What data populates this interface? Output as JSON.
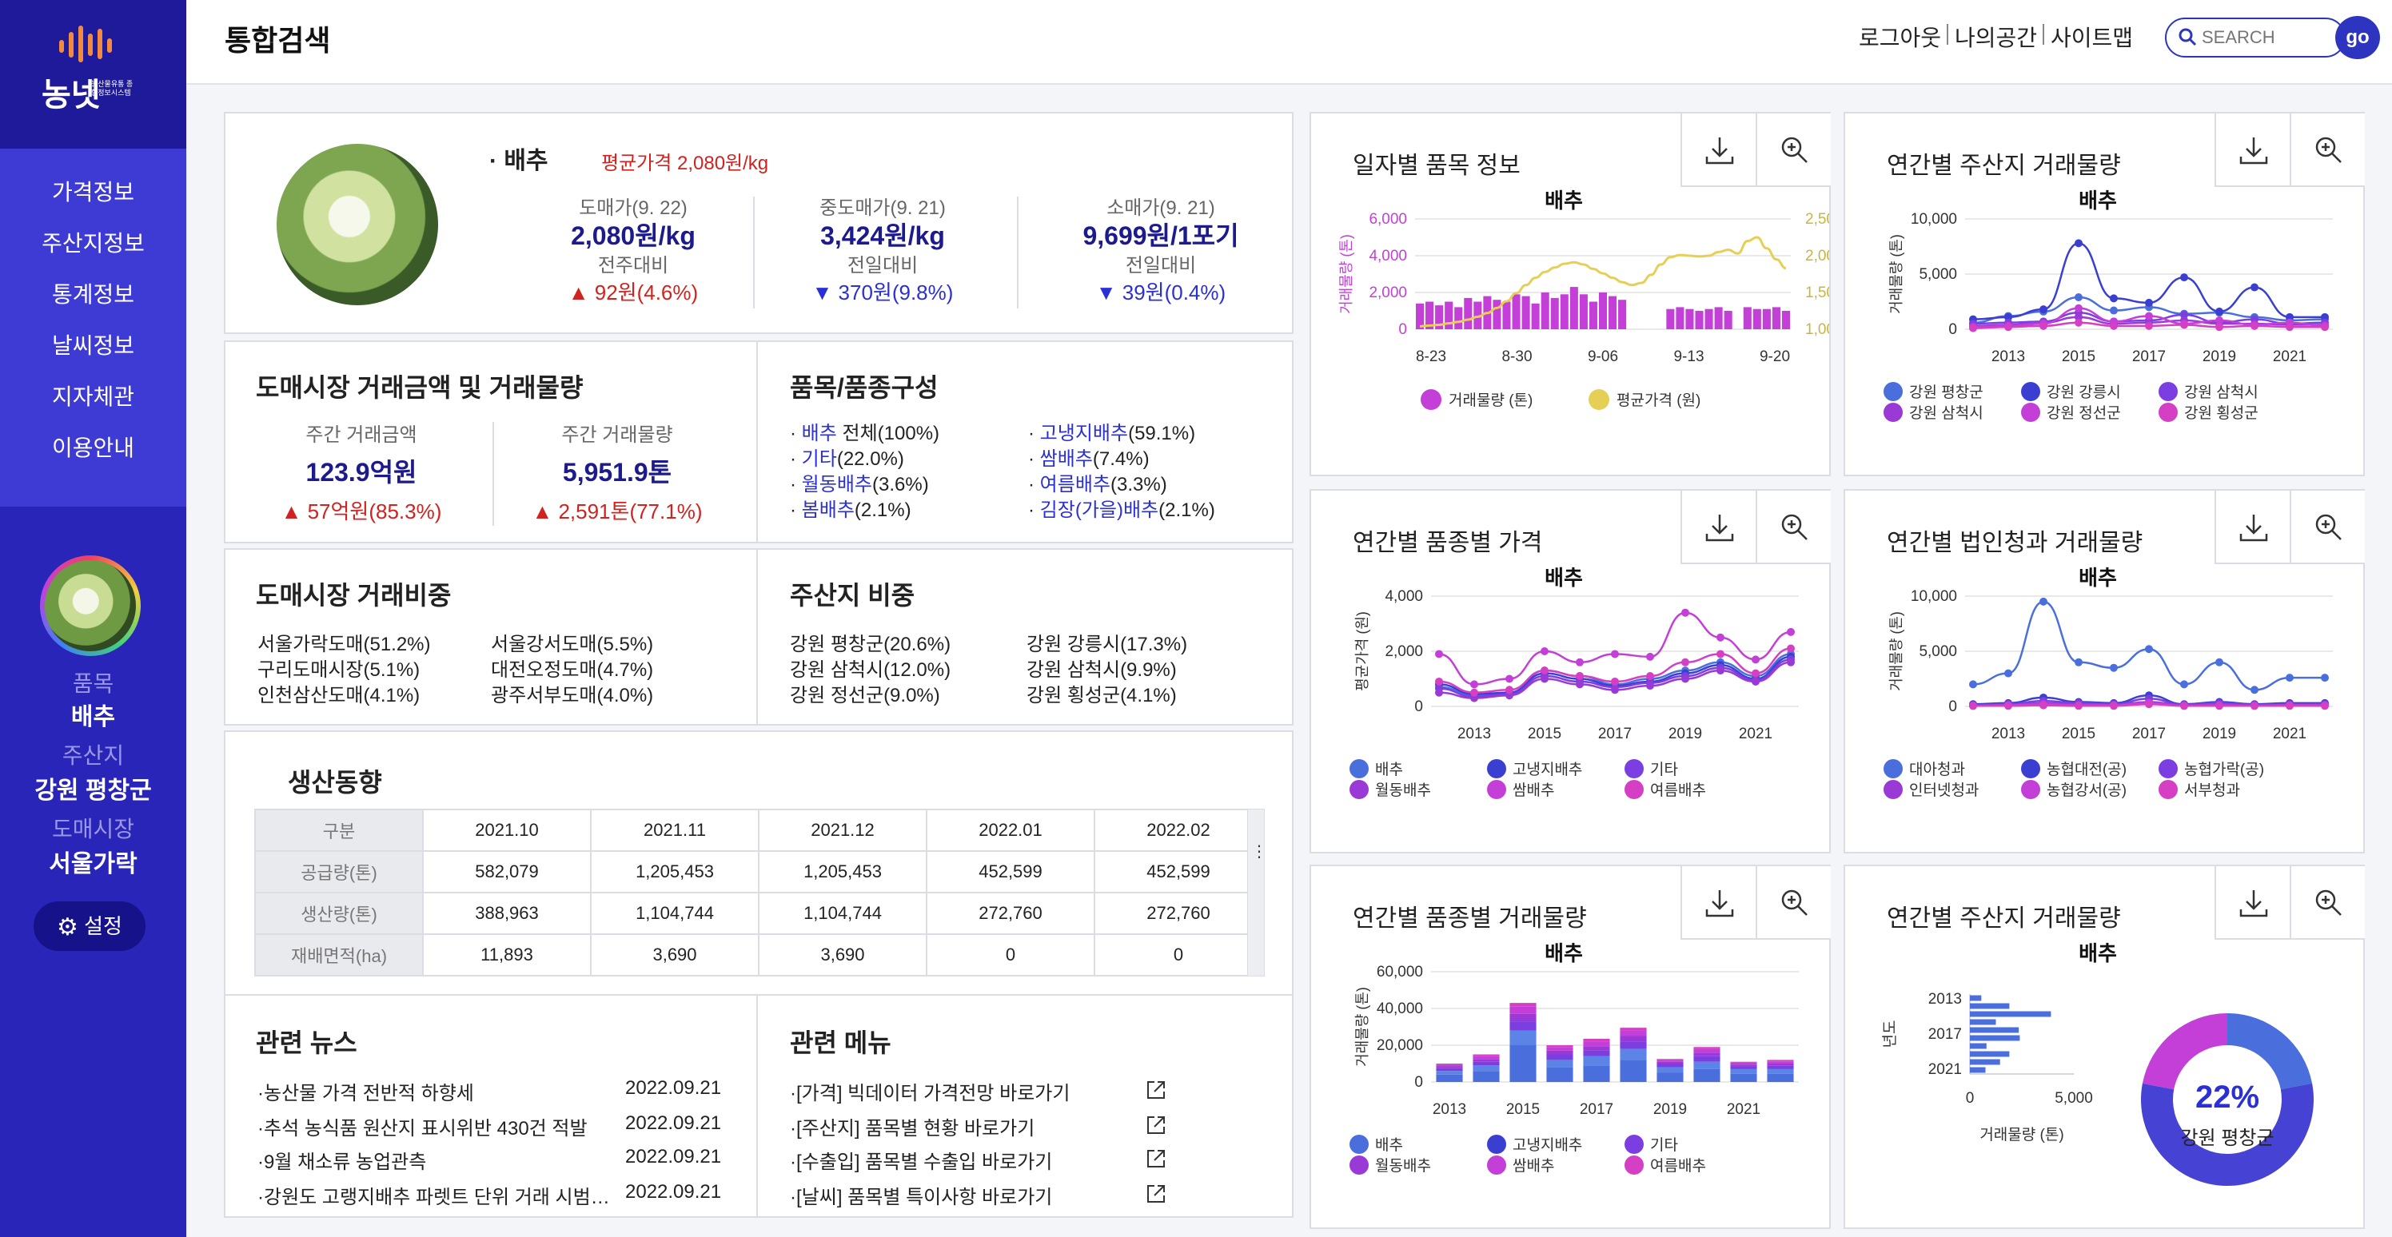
{
  "sidebar": {
    "logo_text": "농넷",
    "logo_sub": "농산물유통 종합정보시스템",
    "nav": [
      "가격정보",
      "주산지정보",
      "통계정보",
      "날씨정보",
      "지자체관",
      "이용안내"
    ],
    "item_label": "품목",
    "item_value": "배추",
    "region_label": "주산지",
    "region_value": "강원 평창군",
    "market_label": "도매시장",
    "market_value": "서울가락",
    "settings": "설정"
  },
  "header": {
    "title": "통합검색",
    "links": [
      "로그아웃",
      "나의공간",
      "사이트맵"
    ],
    "search_placeholder": "SEARCH",
    "go": "go"
  },
  "summary": {
    "item": "배추",
    "avg_price": "평균가격 2,080원/kg",
    "cols": [
      {
        "label": "도매가(9. 22)",
        "value": "2,080원/kg",
        "cmp": "전주대비",
        "delta": "▲ 92원(4.6%)",
        "dir": "up"
      },
      {
        "label": "중도매가(9. 21)",
        "value": "3,424원/kg",
        "cmp": "전일대비",
        "delta": "▼ 370원(9.8%)",
        "dir": "down"
      },
      {
        "label": "소매가(9. 21)",
        "value": "9,699원/1포기",
        "cmp": "전일대비",
        "delta": "▼ 39원(0.4%)",
        "dir": "down"
      }
    ]
  },
  "wholesale": {
    "title": "도매시장 거래금액 및 거래물량",
    "amount_label": "주간 거래금액",
    "amount": "123.9억원",
    "amount_delta": "▲ 57억원(85.3%)",
    "volume_label": "주간 거래물량",
    "volume": "5,951.9톤",
    "volume_delta": "▲ 2,591톤(77.1%)"
  },
  "composition": {
    "title": "품목/품종구성",
    "items": [
      {
        "lnk": "배추",
        "rest": " 전체(100%)"
      },
      {
        "lnk": "고냉지배추",
        "rest": "(59.1%)"
      },
      {
        "lnk": "기타",
        "rest": "(22.0%)"
      },
      {
        "lnk": "쌈배추",
        "rest": "(7.4%)"
      },
      {
        "lnk": "월동배추",
        "rest": "(3.6%)"
      },
      {
        "lnk": "여름배추",
        "rest": "(3.3%)"
      },
      {
        "lnk": "봄배추",
        "rest": "(2.1%)"
      },
      {
        "lnk": "김장(가을)배추",
        "rest": "(2.1%)"
      }
    ]
  },
  "market_share": {
    "title": "도매시장 거래비중",
    "items": [
      "서울가락도매(51.2%)",
      "서울강서도매(5.5%)",
      "구리도매시장(5.1%)",
      "대전오정도매(4.7%)",
      "인천삼산도매(4.1%)",
      "광주서부도매(4.0%)"
    ]
  },
  "region_share": {
    "title": "주산지 비중",
    "items": [
      "강원 평창군(20.6%)",
      "강원 강릉시(17.3%)",
      "강원 삼척시(12.0%)",
      "강원 삼척시(9.9%)",
      "강원 정선군(9.0%)",
      "강원 횡성군(4.1%)"
    ]
  },
  "production": {
    "title": "생산동향",
    "header": [
      "구분",
      "2021.10",
      "2021.11",
      "2021.12",
      "2022.01",
      "2022.02"
    ],
    "rows": [
      [
        "공급량(톤)",
        "582,079",
        "1,205,453",
        "1,205,453",
        "452,599",
        "452,599"
      ],
      [
        "생산량(톤)",
        "388,963",
        "1,104,744",
        "1,104,744",
        "272,760",
        "272,760"
      ],
      [
        "재배면적(ha)",
        "11,893",
        "3,690",
        "3,690",
        "0",
        "0"
      ]
    ]
  },
  "news": {
    "title": "관련 뉴스",
    "items": [
      {
        "t": "·농산물 가격 전반적 하향세",
        "d": "2022.09.21"
      },
      {
        "t": "·추석 농식품 원산지 표시위반 430건 적발",
        "d": "2022.09.21"
      },
      {
        "t": "·9월 채소류 농업관측",
        "d": "2022.09.21"
      },
      {
        "t": "·강원도 고랭지배추 파렛트 단위 거래 시범…",
        "d": "2022.09.21"
      }
    ]
  },
  "menu": {
    "title": "관련 메뉴",
    "items": [
      "·[가격] 빅데이터 가격전망 바로가기",
      "·[주산지] 품목별 현황 바로가기",
      "·[수출입] 품목별 수출입 바로가기",
      "·[날씨] 품목별 특이사항 바로가기"
    ]
  },
  "colors": {
    "blue": "#4a6fdc",
    "indigo": "#3b3fd1",
    "violet": "#7b3ee0",
    "purple": "#9a3ad6",
    "magenta": "#c33fd8",
    "pink": "#d43fc4",
    "gold": "#e6cf55"
  },
  "chart_data": [
    {
      "id": "daily",
      "type": "bar+line",
      "panel_title": "일자별 품목 정보",
      "title": "배추",
      "ylabel": "거래물량 (톤)",
      "ylabel2": "",
      "ylim": [
        0,
        6000
      ],
      "ylim2": [
        1000,
        2500
      ],
      "yticks": [
        "6,000",
        "4,000",
        "2,000",
        "0"
      ],
      "yticks2": [
        "2,500",
        "2,000",
        "1,500",
        "1,000"
      ],
      "xticks": [
        "8-23",
        "8-30",
        "9-06",
        "9-13",
        "9-20"
      ],
      "bars": [
        1400,
        1500,
        1300,
        1500,
        1200,
        1700,
        1500,
        1800,
        1600,
        1500,
        1900,
        1800,
        1400,
        2000,
        1700,
        1900,
        2300,
        1900,
        1500,
        2000,
        1800,
        1600,
        0,
        0,
        0,
        0,
        1100,
        1200,
        1100,
        1000,
        1100,
        1200,
        1000,
        0,
        1200,
        1100,
        1100,
        1200,
        1000
      ],
      "line": [
        1040,
        1050,
        1060,
        1080,
        1100,
        1130,
        1170,
        1220,
        1290,
        1380,
        1490,
        1600,
        1700,
        1780,
        1840,
        1890,
        1910,
        1880,
        1820,
        1760,
        1700,
        1640,
        1600,
        1630,
        1740,
        1880,
        1980,
        2010,
        2000,
        1990,
        2000,
        2050,
        2080,
        2030,
        2200,
        2250,
        2100,
        1950,
        1830
      ],
      "legend": [
        "거래물량 (톤)",
        "평균가격 (원)"
      ]
    },
    {
      "id": "region-vol-line",
      "type": "line",
      "panel_title": "연간별 주산지 거래물량",
      "title": "배추",
      "ylabel": "거래물량 (톤)",
      "ylim": [
        0,
        10000
      ],
      "yticks": [
        "10,000",
        "5,000",
        "0"
      ],
      "x": [
        2012,
        2013,
        2014,
        2015,
        2016,
        2017,
        2018,
        2019,
        2020,
        2021,
        2022
      ],
      "xticks": [
        "2013",
        "2015",
        "2017",
        "2019",
        "2021"
      ],
      "series": [
        {
          "name": "강원 평창군",
          "values": [
            600,
            1200,
            1600,
            2900,
            1700,
            2000,
            1400,
            1500,
            1100,
            800,
            900
          ]
        },
        {
          "name": "강원 강릉시",
          "values": [
            900,
            1100,
            1800,
            7800,
            2800,
            2400,
            4700,
            1600,
            3800,
            1100,
            1100
          ]
        },
        {
          "name": "강원 삼척시",
          "values": [
            500,
            600,
            700,
            1500,
            700,
            800,
            1300,
            600,
            900,
            500,
            600
          ]
        },
        {
          "name": "강원 삼척시",
          "values": [
            300,
            400,
            600,
            1100,
            500,
            600,
            800,
            500,
            500,
            400,
            400
          ]
        },
        {
          "name": "강원 정선군",
          "values": [
            200,
            300,
            500,
            1900,
            700,
            1200,
            500,
            800,
            400,
            600,
            300
          ]
        },
        {
          "name": "강원 횡성군",
          "values": [
            100,
            200,
            300,
            600,
            300,
            300,
            400,
            200,
            300,
            200,
            200
          ]
        }
      ]
    },
    {
      "id": "variety-price",
      "type": "line",
      "panel_title": "연간별 품종별 가격",
      "title": "배추",
      "ylabel": "평균가격 (원)",
      "ylim": [
        0,
        4000
      ],
      "yticks": [
        "4,000",
        "2,000",
        "0"
      ],
      "x": [
        2012,
        2013,
        2014,
        2015,
        2016,
        2017,
        2018,
        2019,
        2020,
        2021,
        2022
      ],
      "xticks": [
        "2013",
        "2015",
        "2017",
        "2019",
        "2021"
      ],
      "series": [
        {
          "name": "배추",
          "values": [
            700,
            400,
            500,
            1300,
            1100,
            800,
            1000,
            1300,
            1600,
            1100,
            1900
          ]
        },
        {
          "name": "고냉지배추",
          "values": [
            800,
            450,
            500,
            1200,
            1000,
            750,
            900,
            1200,
            1500,
            1000,
            1800
          ]
        },
        {
          "name": "기타",
          "values": [
            650,
            350,
            450,
            1100,
            900,
            700,
            850,
            1100,
            1400,
            950,
            1700
          ]
        },
        {
          "name": "월동배추",
          "values": [
            500,
            300,
            400,
            1000,
            800,
            600,
            750,
            1000,
            1300,
            900,
            1600
          ]
        },
        {
          "name": "쌈배추",
          "values": [
            1900,
            800,
            1000,
            2000,
            1600,
            1900,
            1800,
            3400,
            2500,
            1700,
            2700
          ]
        },
        {
          "name": "여름배추",
          "values": [
            900,
            500,
            600,
            1300,
            1100,
            900,
            1100,
            1600,
            1900,
            1200,
            2100
          ]
        }
      ]
    },
    {
      "id": "corp-vol",
      "type": "line",
      "panel_title": "연간별 법인청과 거래물량",
      "title": "배추",
      "ylabel": "거래물량 (톤)",
      "ylim": [
        0,
        10000
      ],
      "yticks": [
        "10,000",
        "5,000",
        "0"
      ],
      "x": [
        2012,
        2013,
        2014,
        2015,
        2016,
        2017,
        2018,
        2019,
        2020,
        2021,
        2022
      ],
      "xticks": [
        "2013",
        "2015",
        "2017",
        "2019",
        "2021"
      ],
      "series": [
        {
          "name": "대아청과",
          "values": [
            2000,
            3000,
            9500,
            4000,
            3500,
            5200,
            2000,
            4000,
            1500,
            2600,
            2600
          ]
        },
        {
          "name": "농협대전(공)",
          "values": [
            200,
            300,
            800,
            400,
            300,
            1000,
            200,
            400,
            200,
            300,
            300
          ]
        },
        {
          "name": "농협가락(공)",
          "values": [
            100,
            200,
            500,
            300,
            200,
            700,
            150,
            300,
            150,
            200,
            200
          ]
        },
        {
          "name": "인터넷청과",
          "values": [
            100,
            150,
            300,
            200,
            150,
            400,
            100,
            200,
            100,
            150,
            150
          ]
        },
        {
          "name": "농협강서(공)",
          "values": [
            50,
            100,
            200,
            100,
            100,
            300,
            50,
            100,
            50,
            100,
            100
          ]
        },
        {
          "name": "서부청과",
          "values": [
            50,
            50,
            100,
            50,
            50,
            200,
            50,
            50,
            50,
            50,
            50
          ]
        }
      ]
    },
    {
      "id": "variety-vol",
      "type": "stacked-bar",
      "panel_title": "연간별 품종별 거래물량",
      "title": "배추",
      "ylabel": "거래물량 (톤)",
      "ylim": [
        0,
        60000
      ],
      "yticks": [
        "60,000",
        "40,000",
        "20,000",
        "0"
      ],
      "categories": [
        2013,
        2014,
        2015,
        2016,
        2017,
        2018,
        2019,
        2020,
        2021,
        2022
      ],
      "xticks": [
        "2013",
        "2015",
        "2017",
        "2019",
        "2021"
      ],
      "series": [
        {
          "name": "배추",
          "values": [
            4000,
            6000,
            20000,
            8000,
            9000,
            12000,
            5000,
            7000,
            4500,
            4500
          ]
        },
        {
          "name": "고냉지배추",
          "values": [
            2000,
            3000,
            8000,
            4000,
            5000,
            6000,
            3000,
            4000,
            2500,
            2500
          ]
        },
        {
          "name": "기타",
          "values": [
            1500,
            2000,
            5000,
            3000,
            3000,
            4000,
            2000,
            3000,
            1500,
            1800
          ]
        },
        {
          "name": "월동배추",
          "values": [
            1000,
            1500,
            4000,
            2000,
            2500,
            3000,
            1000,
            2000,
            1000,
            1200
          ]
        },
        {
          "name": "쌈배추",
          "values": [
            1000,
            1500,
            4000,
            2000,
            2500,
            3000,
            1000,
            2000,
            1000,
            1200
          ]
        },
        {
          "name": "여름배추",
          "values": [
            500,
            1000,
            2000,
            1000,
            1500,
            1500,
            500,
            1000,
            500,
            800
          ]
        }
      ]
    },
    {
      "id": "region-vol-donut",
      "type": "bar+pie",
      "panel_title": "연간별 주산지 거래물량",
      "title": "배추",
      "ylabel": "년도",
      "xlabel": "거래물량 (톤)",
      "xticks": [
        "0",
        "5,000"
      ],
      "xlim": [
        0,
        10000
      ],
      "yticks": [
        "2013",
        "2017",
        "2021"
      ],
      "bars": [
        1100,
        3800,
        7800,
        2500,
        4700,
        4800,
        1600,
        3800,
        2900,
        1500
      ],
      "pie": {
        "label": "강원 평창군",
        "percent": "22%",
        "value": 22
      }
    }
  ]
}
